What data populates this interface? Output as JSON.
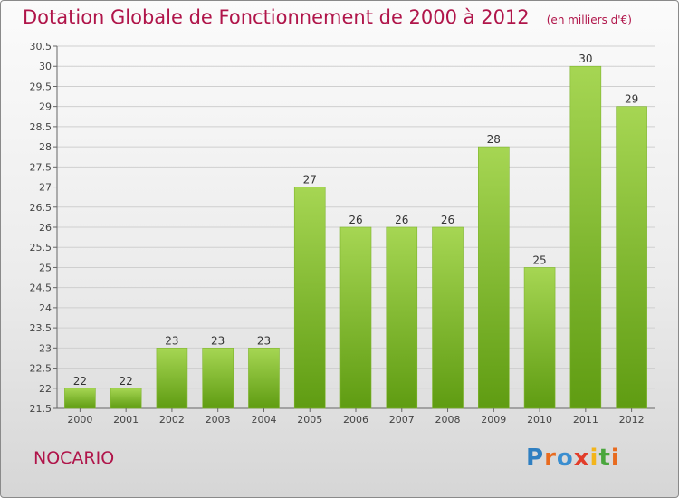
{
  "header": {
    "title": "Dotation Globale de Fonctionnement de 2000 à 2012",
    "subtitle": "(en milliers d'€)"
  },
  "footer": {
    "commune": "NOCARIO",
    "logo_text": "Proxiti"
  },
  "colors": {
    "title": "#b0154a",
    "bar_top": "#a6d653",
    "bar_bottom": "#5f9c12",
    "logo_letters": [
      "#2f7fc1",
      "#e86b1f",
      "#3a8ed0",
      "#e23d2a",
      "#f3b51b",
      "#4aa63d",
      "#e86b1f"
    ]
  },
  "chart_data": {
    "type": "bar",
    "categories": [
      "2000",
      "2001",
      "2002",
      "2003",
      "2004",
      "2005",
      "2006",
      "2007",
      "2008",
      "2009",
      "2010",
      "2011",
      "2012"
    ],
    "values": [
      22,
      22,
      23,
      23,
      23,
      27,
      26,
      26,
      26,
      28,
      25,
      30,
      29
    ],
    "data_labels": [
      "22",
      "22",
      "23",
      "23",
      "23",
      "27",
      "26",
      "26",
      "26",
      "28",
      "25",
      "30",
      "29"
    ],
    "ylim": [
      21.5,
      30.5
    ],
    "yticks": [
      "21.5",
      "22",
      "22.5",
      "23",
      "23.5",
      "24",
      "24.5",
      "25",
      "25.5",
      "26",
      "26.5",
      "27",
      "27.5",
      "28",
      "28.5",
      "29",
      "29.5",
      "30",
      "30.5"
    ],
    "grid": true,
    "legend": "none"
  }
}
